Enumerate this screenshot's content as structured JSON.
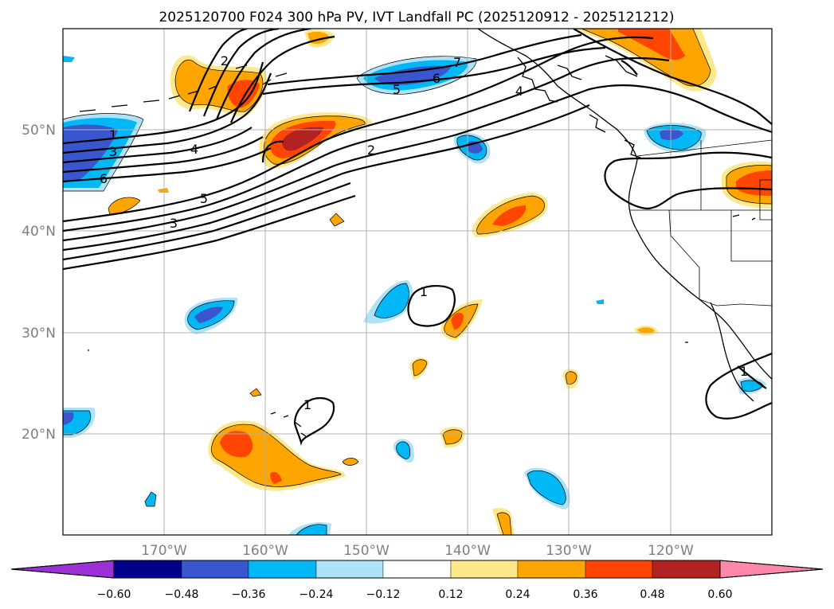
{
  "title": "2025120700 F024 300 hPa PV, IVT Landfall PC (2025120912 - 2025121212)",
  "map": {
    "lon_ticks": [
      "170°W",
      "160°W",
      "150°W",
      "140°W",
      "130°W",
      "120°W"
    ],
    "lat_ticks": [
      "50°N",
      "40°N",
      "30°N",
      "20°N"
    ],
    "contour_labels": [
      "1",
      "2",
      "3",
      "4",
      "5",
      "6",
      "7"
    ]
  },
  "colorbar": {
    "ticks": [
      "−0.60",
      "−0.48",
      "−0.36",
      "−0.24",
      "−0.12",
      "0.12",
      "0.24",
      "0.36",
      "0.48",
      "0.60"
    ],
    "colors": [
      "#9b30d6",
      "#00008b",
      "#3a56cf",
      "#00b8f5",
      "#ade2f8",
      "#ffffff",
      "#ffe88a",
      "#ffa500",
      "#ff4500",
      "#b22222",
      "#ff88aa"
    ]
  },
  "fill_colors": {
    "neg_light": "#ade2f8",
    "neg_mid": "#00b8f5",
    "neg_strong": "#3a56cf",
    "pos_light": "#ffe88a",
    "pos_mid": "#ffa500",
    "pos_strong": "#ff4500",
    "pos_max": "#b22222"
  }
}
